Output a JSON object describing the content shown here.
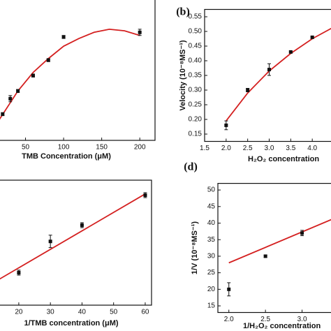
{
  "chart_data": [
    {
      "type": "scatter",
      "xlabel": "TMB Concentration (μM)",
      "xlim": [
        0,
        220
      ],
      "ylim": [
        0,
        1
      ],
      "xticks": [
        50,
        100,
        150,
        200
      ],
      "points": {
        "x": [
          20,
          30,
          40,
          60,
          80,
          100,
          200
        ],
        "values": [
          0.17,
          0.27,
          0.32,
          0.42,
          0.52,
          0.67,
          0.7
        ],
        "errors": [
          0.01,
          0.02,
          0.01,
          0.01,
          0.01,
          0.01,
          0.02
        ],
        "color": "#111111"
      },
      "fit": {
        "x": [
          15,
          40,
          60,
          80,
          100,
          120,
          140,
          160,
          180,
          200
        ],
        "values": [
          0.13,
          0.32,
          0.44,
          0.53,
          0.61,
          0.66,
          0.7,
          0.72,
          0.71,
          0.68
        ],
        "color": "#d42020"
      }
    },
    {
      "type": "scatter",
      "label": "(b)",
      "xlabel": "H₂O₂ concentration",
      "ylabel": "Velocity (10⁻⁸MS⁻¹)",
      "xlim": [
        1.5,
        4.5
      ],
      "ylim": [
        0.125,
        0.575
      ],
      "xticks": [
        1.5,
        {
          "value": 2,
          "label": "2.0"
        },
        2.5,
        {
          "value": 3,
          "label": "3.0"
        },
        3.5,
        {
          "value": 4,
          "label": "4.0"
        }
      ],
      "yticks": [
        0.15,
        {
          "value": 0.2,
          "label": "0.20"
        },
        0.25,
        {
          "value": 0.3,
          "label": "0.30"
        },
        0.35,
        {
          "value": 0.4,
          "label": "0.40"
        },
        0.45,
        {
          "value": 0.5,
          "label": "0.50"
        },
        0.55
      ],
      "points": {
        "x": [
          2,
          2.5,
          3,
          3.5,
          4
        ],
        "values": [
          0.18,
          0.3,
          0.37,
          0.43,
          0.48
        ],
        "errors": [
          0.015,
          0.006,
          0.02,
          0.003,
          0.003
        ],
        "color": "#111111"
      },
      "fit": {
        "x": [
          2,
          2.5,
          3,
          3.5,
          4,
          4.5
        ],
        "values": [
          0.195,
          0.29,
          0.365,
          0.425,
          0.475,
          0.515
        ],
        "color": "#d42020"
      }
    },
    {
      "type": "scatter",
      "xlabel": "1/TMB concentration (μM)",
      "xlim": [
        5,
        62
      ],
      "ylim": [
        0,
        1
      ],
      "xticks": [
        20,
        30,
        40,
        50,
        60
      ],
      "points": {
        "x": [
          20,
          30,
          40,
          60
        ],
        "values": [
          0.26,
          0.51,
          0.64,
          0.88
        ],
        "errors": [
          0.02,
          0.05,
          0.02,
          0.02
        ],
        "color": "#111111"
      },
      "fit": {
        "x": [
          5,
          60
        ],
        "values": [
          0.077,
          0.89
        ],
        "color": "#d42020"
      }
    },
    {
      "type": "scatter",
      "label": "(d)",
      "xlabel": "1/H₂O₂ concentration",
      "ylabel": "1/V (10⁻⁸MS⁻¹)",
      "xlim": [
        1.85,
        3.5
      ],
      "ylim": [
        13,
        52
      ],
      "xticks": [
        {
          "value": 2,
          "label": "2.0"
        },
        2.5,
        {
          "value": 3,
          "label": "3.0"
        }
      ],
      "yticks": [
        15,
        20,
        25,
        30,
        35,
        40,
        45,
        50
      ],
      "points": {
        "x": [
          2,
          2.5,
          3
        ],
        "values": [
          20,
          30,
          37
        ],
        "errors": [
          2,
          0.3,
          0.8
        ],
        "color": "#111111"
      },
      "fit": {
        "x": [
          2,
          3.5
        ],
        "values": [
          28,
          42
        ],
        "color": "#d42020"
      }
    }
  ]
}
